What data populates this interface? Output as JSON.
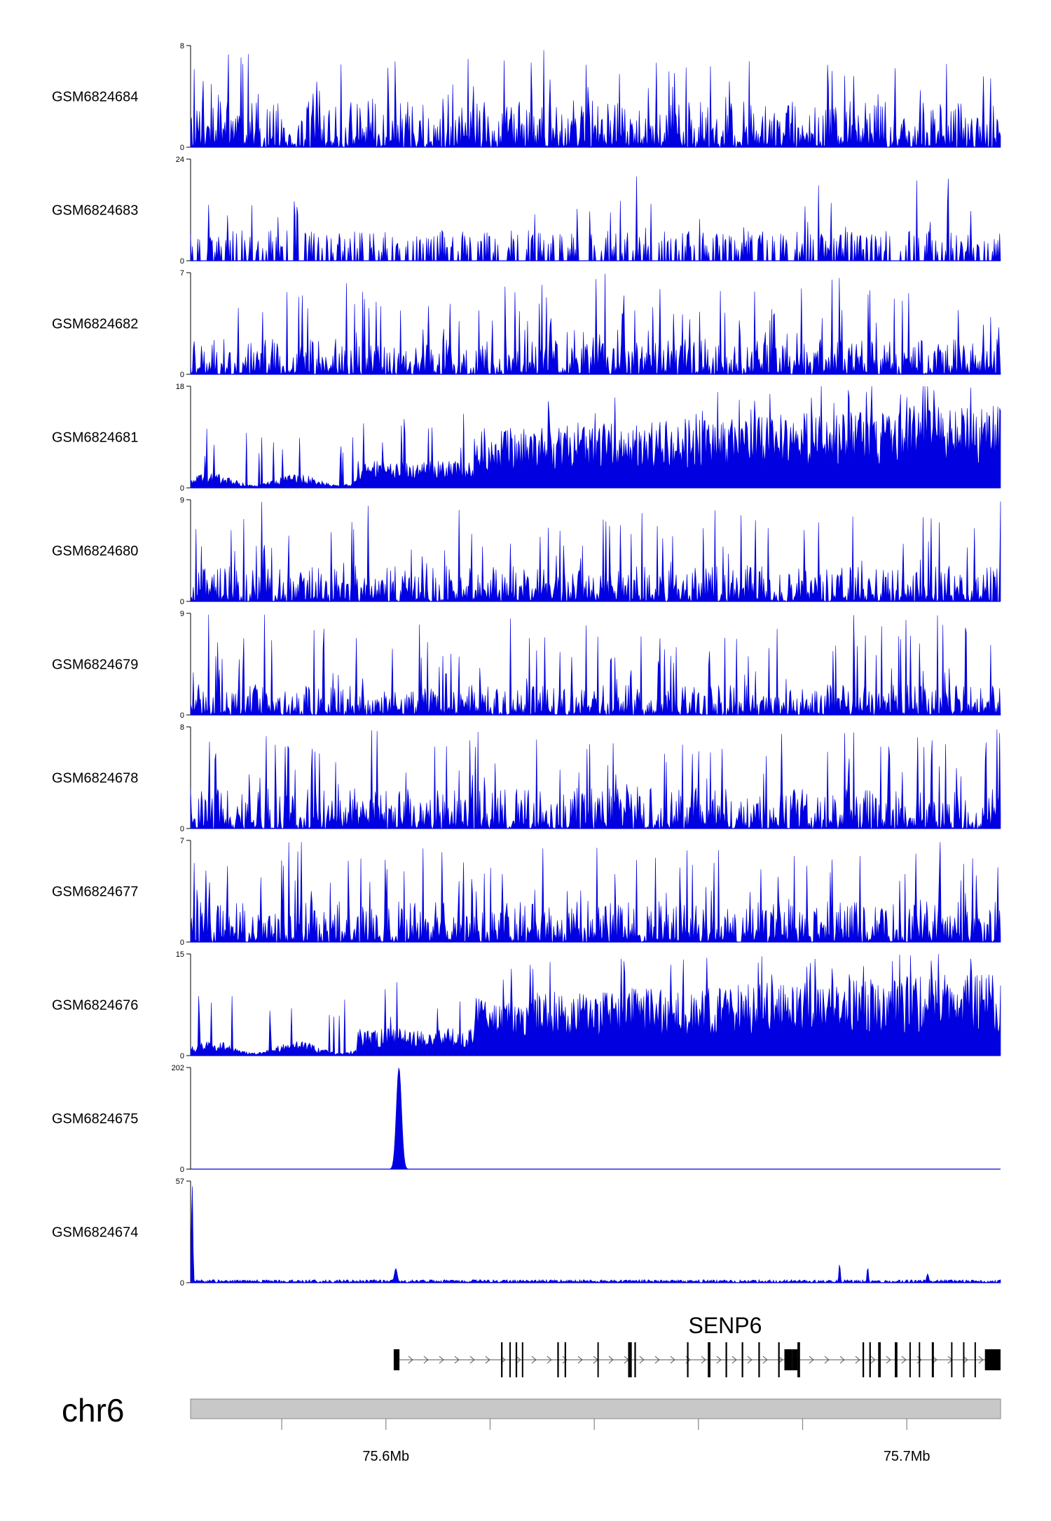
{
  "chart_data": {
    "type": "area",
    "title": "",
    "xlabel": "",
    "ylabel": "",
    "chromosome": "chr6",
    "x_range": [
      75.5625,
      75.718
    ],
    "x_unit": "Mb",
    "x_ticks": [
      75.58,
      75.6,
      75.62,
      75.64,
      75.66,
      75.68,
      75.7
    ],
    "x_tick_labels": [
      {
        "value": 75.6,
        "label": "75.6Mb"
      },
      {
        "value": 75.7,
        "label": "75.7Mb"
      }
    ],
    "series_color": "#0000e0",
    "tracks": [
      {
        "name": "GSM6824684",
        "ymax": 8,
        "ymin": 0,
        "style": "spiky",
        "baseline": 0.45,
        "peak": 0.99
      },
      {
        "name": "GSM6824683",
        "ymax": 24,
        "ymin": 0,
        "style": "sparse",
        "baseline": 0.1,
        "peak": 0.99
      },
      {
        "name": "GSM6824682",
        "ymax": 7,
        "ymin": 0,
        "style": "spiky",
        "baseline": 0.35,
        "peak": 0.99
      },
      {
        "name": "GSM6824681",
        "ymax": 18,
        "ymin": 0,
        "style": "ramp",
        "baseline": 0.4,
        "peak": 0.99
      },
      {
        "name": "GSM6824680",
        "ymax": 9,
        "ymin": 0,
        "style": "spiky",
        "baseline": 0.35,
        "peak": 0.99
      },
      {
        "name": "GSM6824679",
        "ymax": 9,
        "ymin": 0,
        "style": "spiky",
        "baseline": 0.3,
        "peak": 0.99
      },
      {
        "name": "GSM6824678",
        "ymax": 8,
        "ymin": 0,
        "style": "spiky",
        "baseline": 0.4,
        "peak": 0.99
      },
      {
        "name": "GSM6824677",
        "ymax": 7,
        "ymin": 0,
        "style": "spiky",
        "baseline": 0.4,
        "peak": 0.99
      },
      {
        "name": "GSM6824676",
        "ymax": 15,
        "ymin": 0,
        "style": "ramp",
        "baseline": 0.4,
        "peak": 0.99
      },
      {
        "name": "GSM6824675",
        "ymax": 202,
        "ymin": 0,
        "style": "peak",
        "baseline": 0.0,
        "peaks": [
          {
            "x": 75.6025,
            "height": 202,
            "width": 0.0007
          }
        ]
      },
      {
        "name": "GSM6824674",
        "ymax": 57,
        "ymin": 0,
        "style": "peak",
        "baseline": 0.03,
        "peaks": [
          {
            "x": 75.5628,
            "height": 57,
            "width": 0.0002
          },
          {
            "x": 75.6019,
            "height": 8,
            "width": 0.0004
          },
          {
            "x": 75.6871,
            "height": 11,
            "width": 0.0002
          },
          {
            "x": 75.6925,
            "height": 9,
            "width": 0.0002
          },
          {
            "x": 75.704,
            "height": 5,
            "width": 0.0003
          }
        ]
      }
    ],
    "gene": {
      "name": "SENP6",
      "strand": "+",
      "start": 75.6015,
      "end": 75.718,
      "exons": [
        {
          "start": 75.6015,
          "end": 75.6026
        },
        {
          "start": 75.6221,
          "end": 75.6224
        },
        {
          "start": 75.6237,
          "end": 75.6239
        },
        {
          "start": 75.6249,
          "end": 75.6252
        },
        {
          "start": 75.6261,
          "end": 75.6263
        },
        {
          "start": 75.6329,
          "end": 75.6332
        },
        {
          "start": 75.6343,
          "end": 75.6346
        },
        {
          "start": 75.6406,
          "end": 75.6408
        },
        {
          "start": 75.6465,
          "end": 75.6472
        },
        {
          "start": 75.6477,
          "end": 75.648
        },
        {
          "start": 75.6578,
          "end": 75.6581
        },
        {
          "start": 75.6618,
          "end": 75.6623
        },
        {
          "start": 75.6652,
          "end": 75.6655
        },
        {
          "start": 75.6683,
          "end": 75.6686
        },
        {
          "start": 75.6715,
          "end": 75.6718
        },
        {
          "start": 75.6753,
          "end": 75.6756
        },
        {
          "start": 75.6765,
          "end": 75.678
        },
        {
          "start": 75.678,
          "end": 75.679
        },
        {
          "start": 75.679,
          "end": 75.6795
        },
        {
          "start": 75.6915,
          "end": 75.6918
        },
        {
          "start": 75.6928,
          "end": 75.6931
        },
        {
          "start": 75.6945,
          "end": 75.695
        },
        {
          "start": 75.6977,
          "end": 75.6982
        },
        {
          "start": 75.7005,
          "end": 75.7007
        },
        {
          "start": 75.7023,
          "end": 75.7025
        },
        {
          "start": 75.7048,
          "end": 75.7052
        },
        {
          "start": 75.7085,
          "end": 75.7087
        },
        {
          "start": 75.7108,
          "end": 75.711
        },
        {
          "start": 75.713,
          "end": 75.7132
        },
        {
          "start": 75.715,
          "end": 75.718
        }
      ]
    }
  }
}
